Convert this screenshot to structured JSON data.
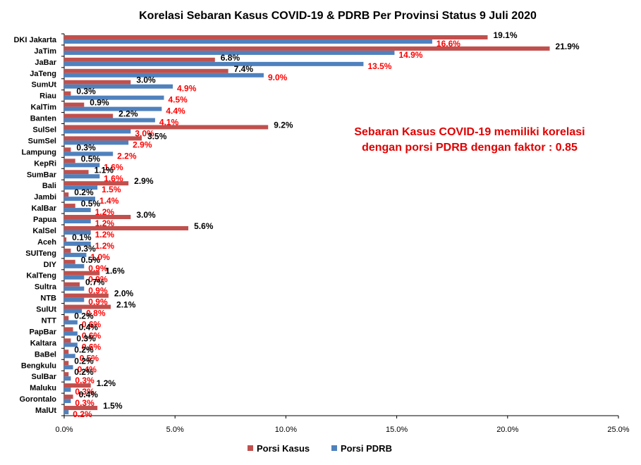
{
  "chart_data": {
    "type": "bar",
    "orientation": "horizontal",
    "title": "Korelasi  Sebaran Kasus COVID-19  &  PDRB Per Provinsi Status 9 Juli 2020",
    "categories": [
      "DKI Jakarta",
      "JaTim",
      "JaBar",
      "JaTeng",
      "SumUt",
      "Riau",
      "KalTim",
      "Banten",
      "SulSel",
      "SumSel",
      "Lampung",
      "KepRi",
      "SumBar",
      "Bali",
      "Jambi",
      "KalBar",
      "Papua",
      "KalSel",
      "Aceh",
      "SUlTeng",
      "DIY",
      "KalTeng",
      "Sultra",
      "NTB",
      "SulUt",
      "NTT",
      "PapBar",
      "Kaltara",
      "BaBel",
      "Bengkulu",
      "SulBar",
      "Maluku",
      "Gorontalo",
      "MalUt"
    ],
    "series": [
      {
        "name": "Porsi Kasus",
        "color": "#c0504d",
        "label_color": "#000000",
        "values": [
          19.1,
          21.9,
          6.8,
          7.4,
          3.0,
          0.3,
          0.9,
          2.2,
          9.2,
          3.5,
          0.3,
          0.5,
          1.1,
          2.9,
          0.2,
          0.5,
          3.0,
          5.6,
          0.1,
          0.3,
          0.5,
          1.6,
          0.7,
          2.0,
          2.1,
          0.2,
          0.4,
          0.3,
          0.2,
          0.2,
          0.2,
          1.2,
          0.4,
          1.5
        ],
        "labels": [
          "19.1%",
          "21.9%",
          "6.8%",
          "7.4%",
          "3.0%",
          "0.3%",
          "0.9%",
          "2.2%",
          "9.2%",
          "3.5%",
          "0.3%",
          "0.5%",
          "1.1%",
          "2.9%",
          "0.2%",
          "0.5%",
          "3.0%",
          "5.6%",
          "0.1%",
          "0.3%",
          "0.5%",
          "1.6%",
          "0.7%",
          "2.0%",
          "2.1%",
          "0.2%",
          "0.4%",
          "0.3%",
          "0.2%",
          "0.2%",
          "0.2%",
          "1.2%",
          "0.4%",
          "1.5%"
        ]
      },
      {
        "name": "Porsi PDRB",
        "color": "#4f81bd",
        "label_color": "#ff0000",
        "values": [
          16.6,
          14.9,
          13.5,
          9.0,
          4.9,
          4.5,
          4.4,
          4.1,
          3.0,
          2.9,
          2.2,
          1.6,
          1.6,
          1.5,
          1.4,
          1.2,
          1.2,
          1.2,
          1.2,
          1.0,
          0.9,
          0.9,
          0.9,
          0.9,
          0.8,
          0.6,
          0.6,
          0.6,
          0.5,
          0.4,
          0.3,
          0.3,
          0.3,
          0.2
        ],
        "labels": [
          "16.6%",
          "14.9%",
          "13.5%",
          "9.0%",
          "4.9%",
          "4.5%",
          "4.4%",
          "4.1%",
          "3.0%",
          "2.9%",
          "2.2%",
          "1.6%",
          "1.6%",
          "1.5%",
          "1.4%",
          "1.2%",
          "1.2%",
          "1.2%",
          "1.2%",
          "1.0%",
          "0.9%",
          "0.9%",
          "0.9%",
          "0.9%",
          "0.8%",
          "0.6%",
          "0.6%",
          "0.6%",
          "0.5%",
          "0.4%",
          "0.3%",
          "0.3%",
          "0.3%",
          "0.2%"
        ]
      }
    ],
    "xlim": [
      0,
      25
    ],
    "xticks": [
      0,
      5,
      10,
      15,
      20,
      25
    ],
    "xtick_labels": [
      "0.0%",
      "5.0%",
      "10.0%",
      "15.0%",
      "20.0%",
      "25.0%"
    ],
    "legend_position": "bottom",
    "grid": false,
    "annotation": [
      "Sebaran Kasus COVID-19  memiliki korelasi",
      "dengan porsi PDRB dengan faktor  : 0.85"
    ]
  }
}
